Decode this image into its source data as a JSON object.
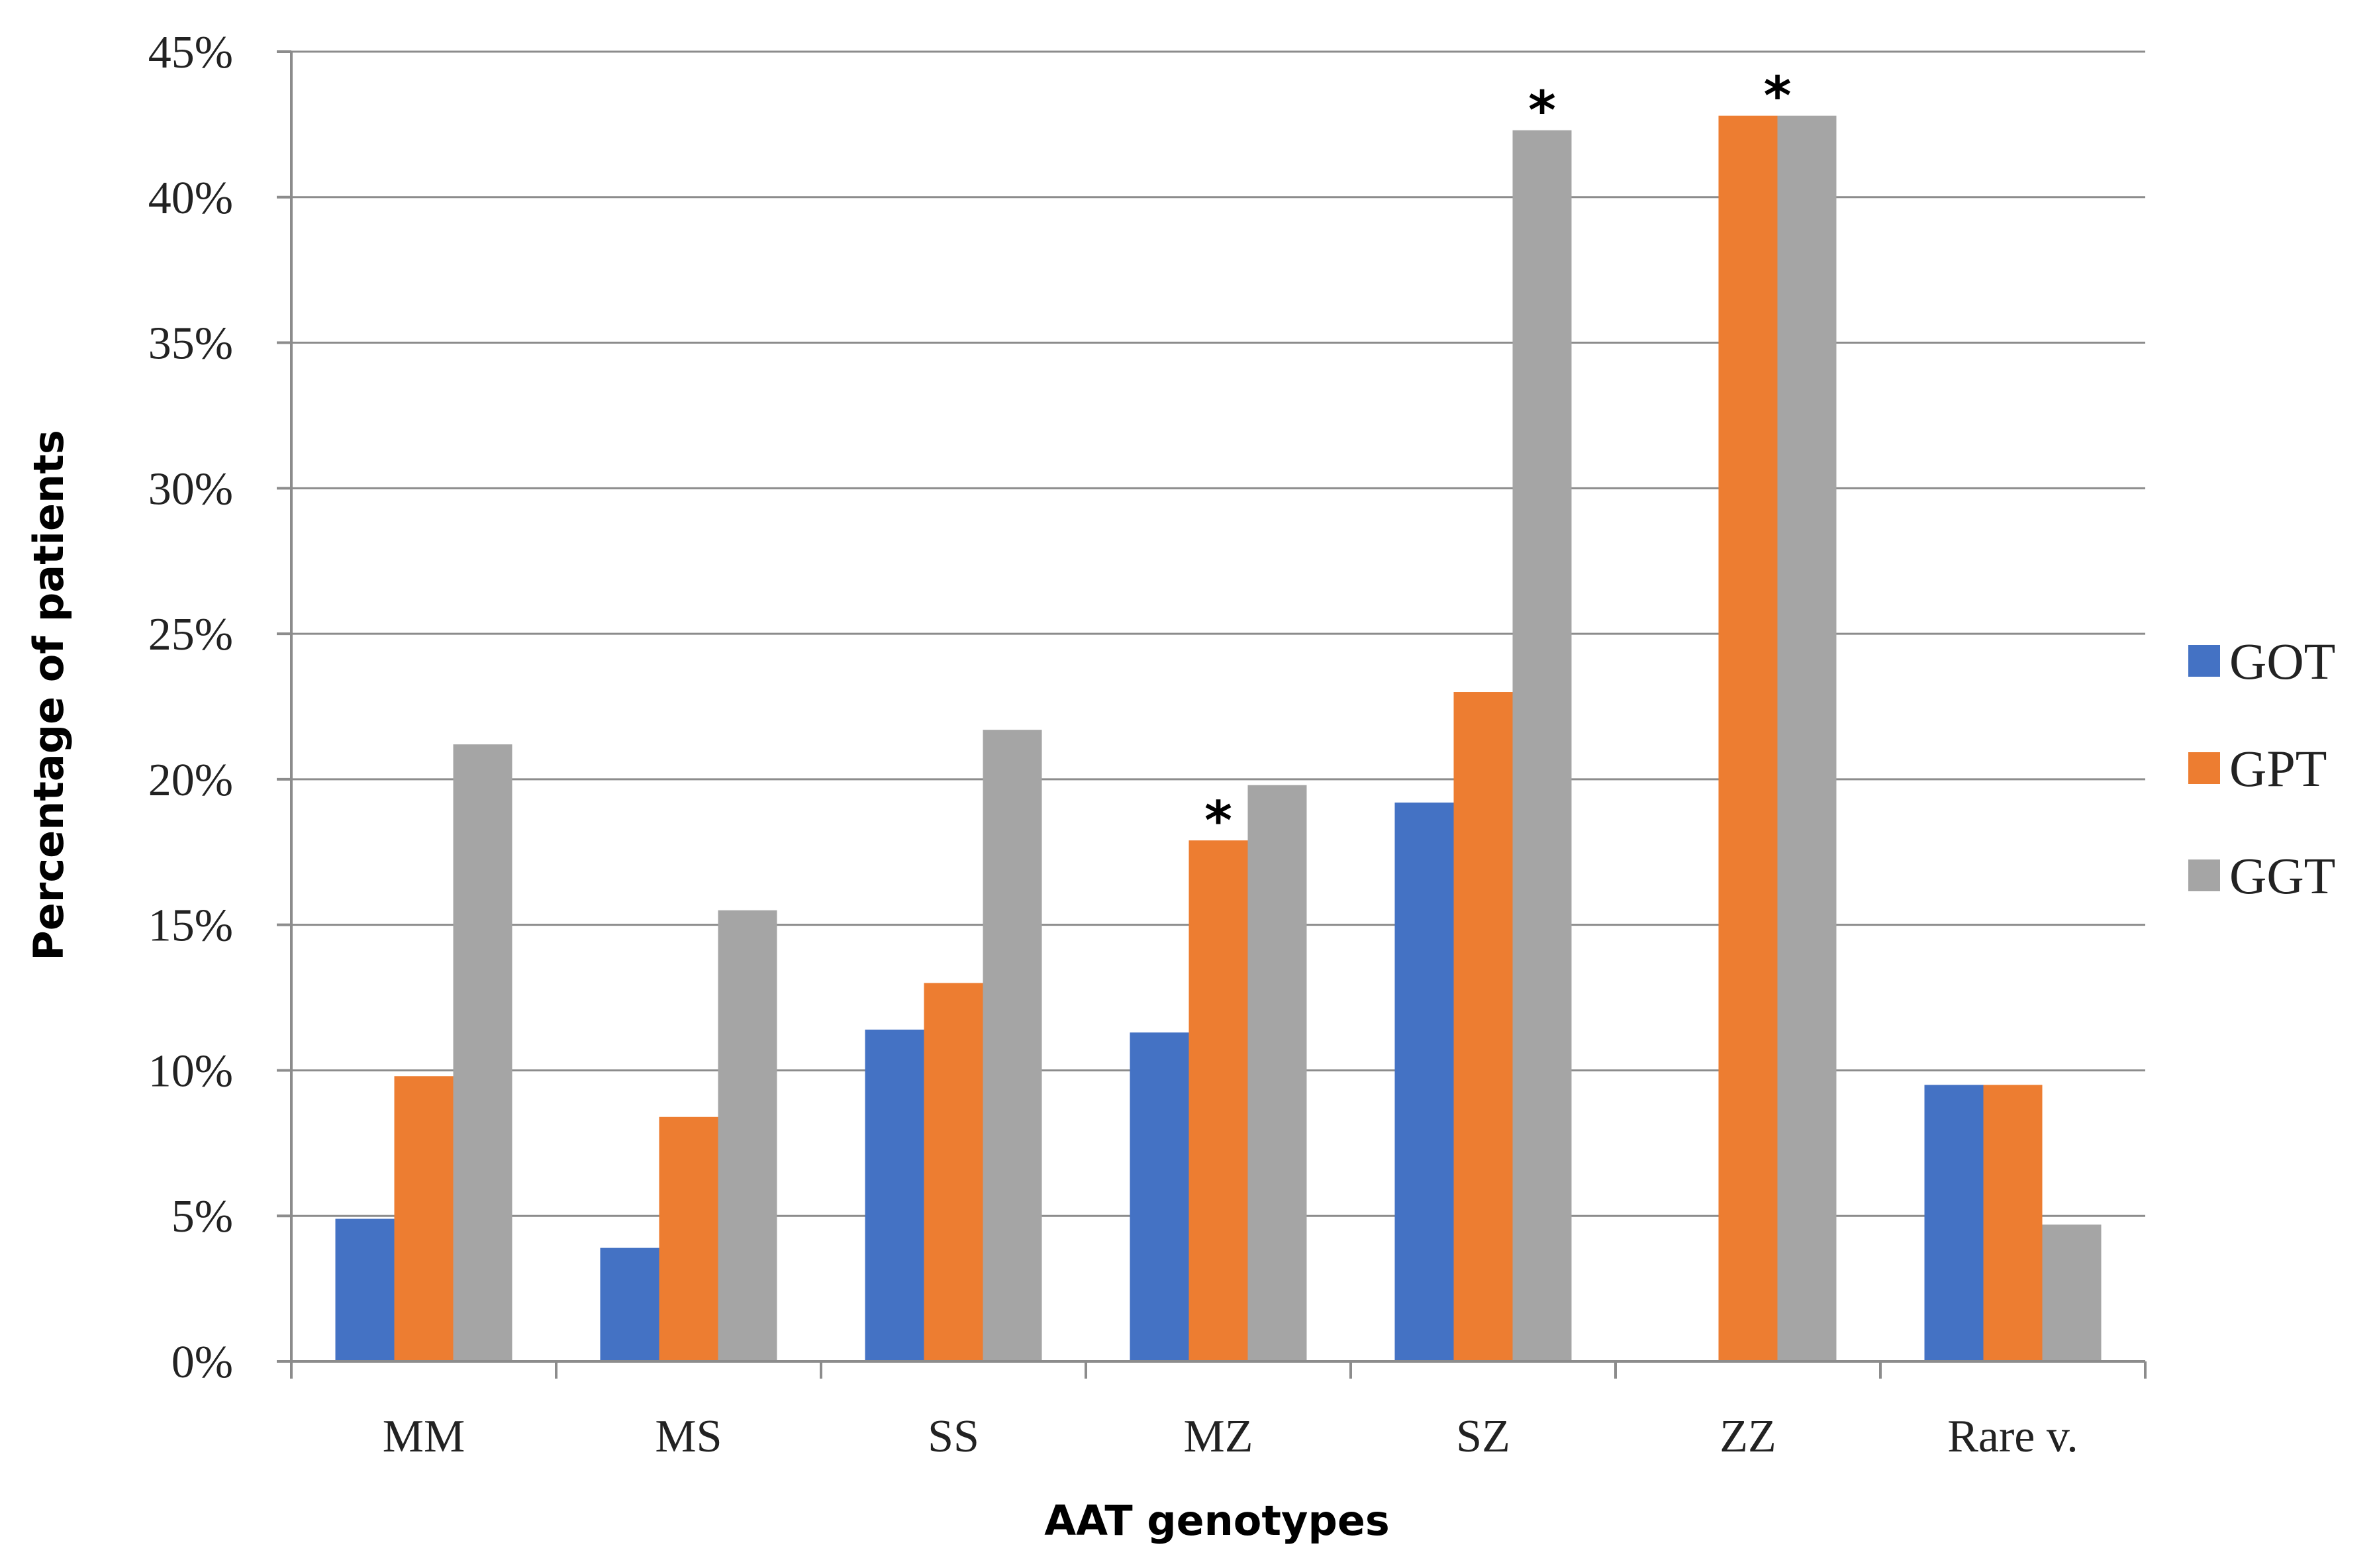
{
  "chart_data": {
    "type": "bar",
    "title": "",
    "xlabel": "AAT genotypes",
    "ylabel": "Percentage of patients",
    "categories": [
      "MM",
      "MS",
      "SS",
      "MZ",
      "SZ",
      "ZZ",
      "Rare v."
    ],
    "series": [
      {
        "name": "GOT",
        "color": "#4472C4",
        "values": [
          4.9,
          3.9,
          11.4,
          11.3,
          19.2,
          0,
          9.5
        ]
      },
      {
        "name": "GPT",
        "color": "#ED7D31",
        "values": [
          9.8,
          8.4,
          13.0,
          17.9,
          23.0,
          42.8,
          9.5
        ]
      },
      {
        "name": "GGT",
        "color": "#A5A5A5",
        "values": [
          21.2,
          15.5,
          21.7,
          19.8,
          42.3,
          42.8,
          4.7
        ]
      }
    ],
    "ylim": [
      0,
      45
    ],
    "y_ticks": [
      0,
      5,
      10,
      15,
      20,
      25,
      30,
      35,
      40,
      45
    ],
    "y_tick_labels": [
      "0%",
      "5%",
      "10%",
      "15%",
      "20%",
      "25%",
      "30%",
      "35%",
      "40%",
      "45%"
    ],
    "grid": true,
    "legend_position": "right",
    "annotations": [
      {
        "text": "*",
        "category": "MZ",
        "series": "GPT"
      },
      {
        "text": "*",
        "category": "SZ",
        "series": "GGT"
      },
      {
        "text": "*",
        "category": "ZZ",
        "series": "GPT+GGT"
      }
    ]
  }
}
